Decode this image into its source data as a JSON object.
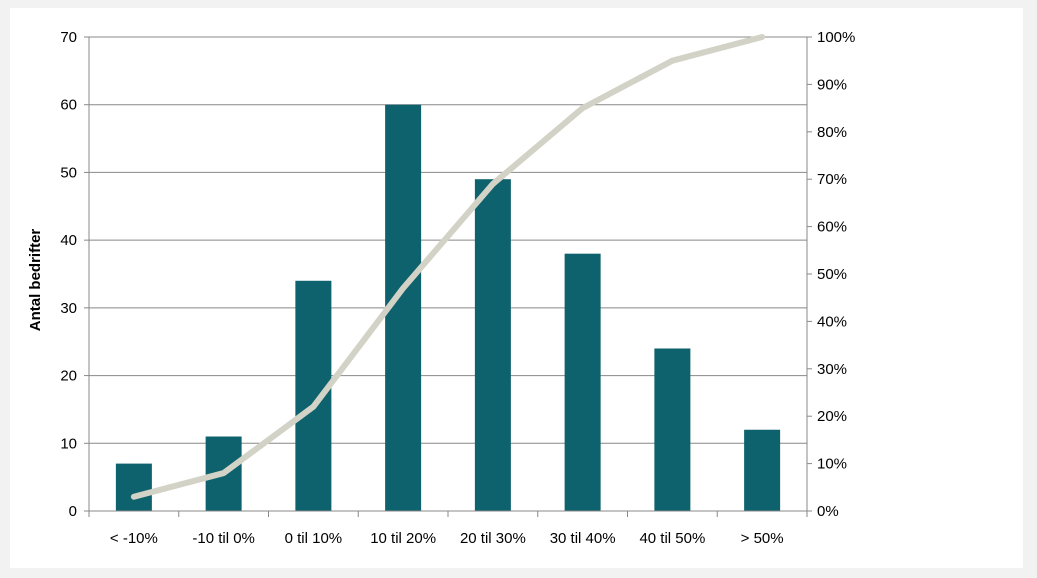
{
  "chart_data": {
    "type": "bar",
    "title": "",
    "xlabel": "",
    "ylabel": "Antal bedrifter",
    "y2label": "",
    "categories": [
      "< -10%",
      "-10 til 0%",
      "0 til 10%",
      "10 til 20%",
      "20 til 30%",
      "30 til 40%",
      "40 til 50%",
      "> 50%"
    ],
    "series": [
      {
        "type": "bar",
        "axis": "left",
        "values": [
          7,
          11,
          34,
          60,
          49,
          38,
          24,
          12
        ]
      },
      {
        "type": "line",
        "axis": "right",
        "values": [
          0.03,
          0.08,
          0.22,
          0.47,
          0.69,
          0.85,
          0.95,
          1.0
        ]
      }
    ],
    "ylim": [
      0,
      70
    ],
    "yticks": [
      0,
      10,
      20,
      30,
      40,
      50,
      60,
      70
    ],
    "y2lim": [
      0,
      1
    ],
    "y2ticks": [
      "0%",
      "10%",
      "20%",
      "30%",
      "40%",
      "50%",
      "60%",
      "70%",
      "80%",
      "90%",
      "100%"
    ],
    "grid": true,
    "legend": "none",
    "colors": {
      "bar": "#0e626e",
      "line": "#d3d2c6",
      "grid": "#888888"
    }
  }
}
